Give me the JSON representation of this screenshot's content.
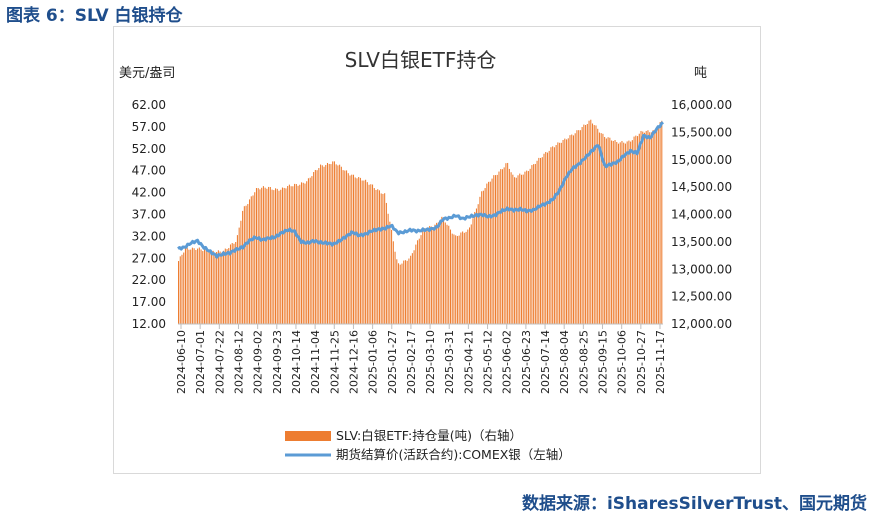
{
  "figure_title": "图表 6：SLV 白银持仓",
  "source": "数据来源：iSharesSilverTrust、国元期货",
  "colors": {
    "bar": "#ed7d31",
    "line": "#5b9bd5",
    "brand": "#1f4e8c"
  },
  "chart_data": {
    "type": "bar+line",
    "title": "SLV白银ETF持仓",
    "left_axis_label": "美元/盎司",
    "right_axis_label": "吨",
    "left_ylim": [
      12,
      62
    ],
    "right_ylim": [
      12000,
      16000
    ],
    "left_ticks": [
      "12.00",
      "17.00",
      "22.00",
      "27.00",
      "32.00",
      "37.00",
      "42.00",
      "47.00",
      "52.00",
      "57.00",
      "62.00"
    ],
    "right_ticks": [
      "12,000.00",
      "12,500.00",
      "13,000.00",
      "13,500.00",
      "14,000.00",
      "14,500.00",
      "15,000.00",
      "15,500.00",
      "16,000.00"
    ],
    "x_ticks": [
      "2024-06-10",
      "2024-07-01",
      "2024-07-22",
      "2024-08-12",
      "2024-09-02",
      "2024-09-23",
      "2024-10-14",
      "2024-11-04",
      "2024-11-25",
      "2024-12-16",
      "2025-01-06",
      "2025-01-27",
      "2025-02-17",
      "2025-03-10",
      "2025-03-31",
      "2025-04-21",
      "2025-05-12",
      "2025-06-02",
      "2025-06-23",
      "2025-07-14",
      "2025-08-04",
      "2025-08-25",
      "2025-09-15",
      "2025-10-06",
      "2025-10-27",
      "2025-11-17"
    ],
    "series": [
      {
        "name": "SLV:白银ETF:持仓量(吨)（右轴）",
        "axis": "right",
        "kind": "bar",
        "knots": [
          [
            0,
            13150
          ],
          [
            1,
            13350
          ],
          [
            3,
            13400
          ],
          [
            5,
            13300
          ],
          [
            7,
            13350
          ],
          [
            9,
            13500
          ],
          [
            10,
            14100
          ],
          [
            12,
            14450
          ],
          [
            14,
            14500
          ],
          [
            16,
            14450
          ],
          [
            18,
            14550
          ],
          [
            20,
            14600
          ],
          [
            22,
            14900
          ],
          [
            24,
            14950
          ],
          [
            26,
            14800
          ],
          [
            28,
            14650
          ],
          [
            30,
            14550
          ],
          [
            32,
            14350
          ],
          [
            34,
            13100
          ],
          [
            36,
            13200
          ],
          [
            38,
            13750
          ],
          [
            40,
            13800
          ],
          [
            41,
            13950
          ],
          [
            43,
            13600
          ],
          [
            45,
            13700
          ],
          [
            47,
            14400
          ],
          [
            49,
            14700
          ],
          [
            51,
            14950
          ],
          [
            52,
            14650
          ],
          [
            54,
            14800
          ],
          [
            56,
            15000
          ],
          [
            58,
            15250
          ],
          [
            60,
            15350
          ],
          [
            62,
            15550
          ],
          [
            64,
            15700
          ],
          [
            66,
            15450
          ],
          [
            68,
            15300
          ],
          [
            70,
            15350
          ],
          [
            72,
            15500
          ],
          [
            74,
            15550
          ],
          [
            75,
            15700
          ]
        ]
      },
      {
        "name": "期货结算价(活跃合约):COMEX银（左轴）",
        "axis": "left",
        "kind": "line",
        "knots": [
          [
            0,
            29.2
          ],
          [
            1,
            29.5
          ],
          [
            2,
            30.5
          ],
          [
            3,
            31.0
          ],
          [
            4,
            29.5
          ],
          [
            5,
            28.5
          ],
          [
            6,
            27.5
          ],
          [
            7,
            28.0
          ],
          [
            8,
            28.2
          ],
          [
            9,
            29.0
          ],
          [
            10,
            29.5
          ],
          [
            11,
            31.0
          ],
          [
            12,
            31.8
          ],
          [
            13,
            31.2
          ],
          [
            14,
            31.6
          ],
          [
            15,
            31.8
          ],
          [
            16,
            32.8
          ],
          [
            17,
            33.5
          ],
          [
            18,
            33.2
          ],
          [
            19,
            30.8
          ],
          [
            20,
            30.5
          ],
          [
            21,
            31.0
          ],
          [
            22,
            30.6
          ],
          [
            23,
            30.5
          ],
          [
            24,
            30.2
          ],
          [
            25,
            31.0
          ],
          [
            26,
            32.0
          ],
          [
            27,
            33.0
          ],
          [
            28,
            32.2
          ],
          [
            29,
            32.5
          ],
          [
            30,
            33.3
          ],
          [
            31,
            33.6
          ],
          [
            32,
            33.8
          ],
          [
            33,
            34.5
          ],
          [
            34,
            32.8
          ],
          [
            35,
            33.0
          ],
          [
            36,
            33.5
          ],
          [
            37,
            33.2
          ],
          [
            38,
            33.5
          ],
          [
            39,
            33.6
          ],
          [
            40,
            34.0
          ],
          [
            41,
            36.0
          ],
          [
            42,
            36.2
          ],
          [
            43,
            36.8
          ],
          [
            44,
            36.0
          ],
          [
            45,
            36.5
          ],
          [
            46,
            36.8
          ],
          [
            47,
            37.0
          ],
          [
            48,
            36.5
          ],
          [
            49,
            36.8
          ],
          [
            50,
            37.8
          ],
          [
            51,
            38.3
          ],
          [
            52,
            38.0
          ],
          [
            53,
            38.2
          ],
          [
            54,
            37.8
          ],
          [
            55,
            38.0
          ],
          [
            56,
            39.0
          ],
          [
            57,
            39.5
          ],
          [
            58,
            40.5
          ],
          [
            59,
            42.5
          ],
          [
            60,
            45.5
          ],
          [
            61,
            47.5
          ],
          [
            62,
            48.5
          ],
          [
            63,
            50.0
          ],
          [
            64,
            51.5
          ],
          [
            65,
            53.0
          ],
          [
            66,
            48.0
          ],
          [
            67,
            48.5
          ],
          [
            68,
            49.0
          ],
          [
            69,
            50.5
          ],
          [
            70,
            51.5
          ],
          [
            71,
            51.0
          ],
          [
            72,
            55.0
          ],
          [
            73,
            54.5
          ],
          [
            74,
            56.5
          ],
          [
            75,
            58.0
          ]
        ]
      }
    ],
    "legend_position": "bottom",
    "grid": false
  }
}
